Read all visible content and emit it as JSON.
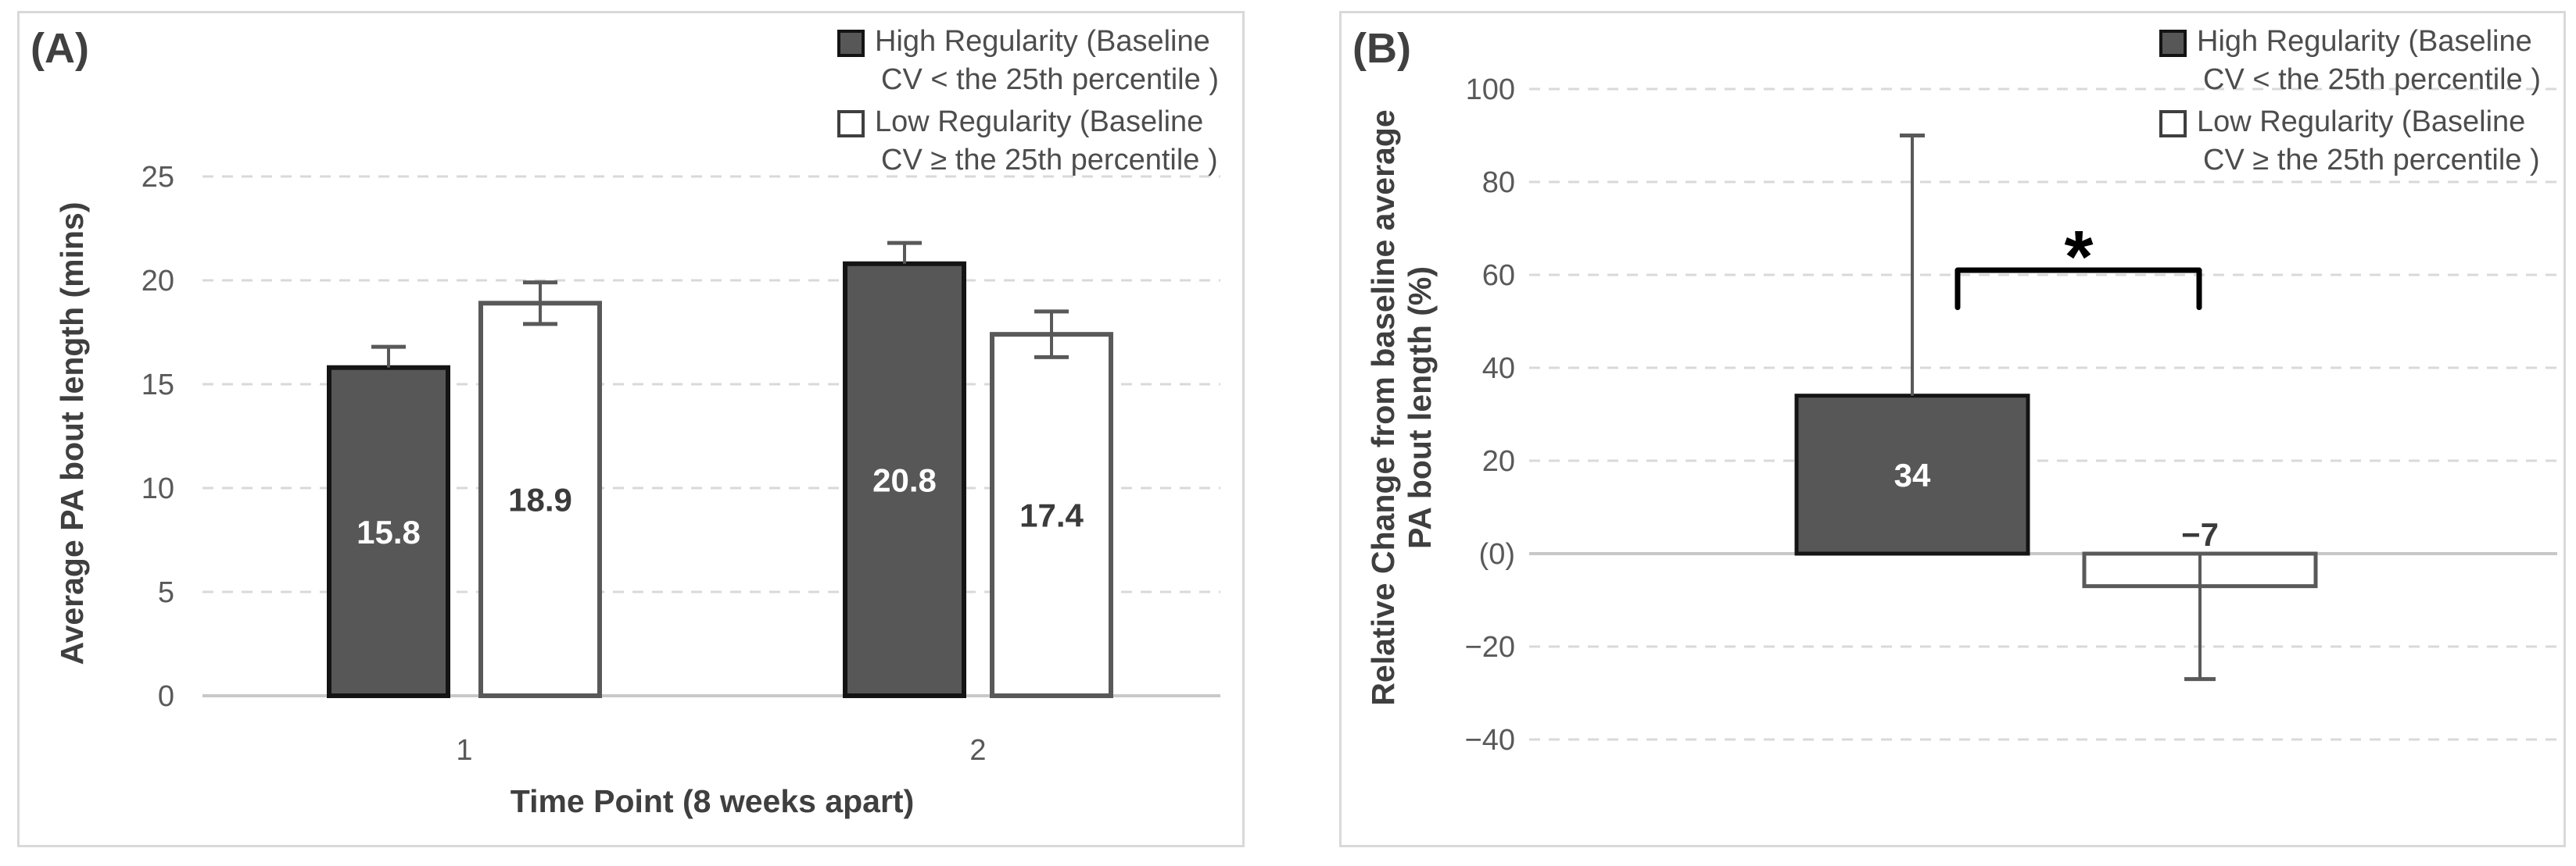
{
  "page": {
    "background": "#ffffff"
  },
  "colors": {
    "panel_border": "#d9d9d9",
    "grid": "#d9d9d9",
    "baseline": "#c8c8c8",
    "bar_dark_fill": "#575757",
    "bar_dark_stroke": "#141414",
    "bar_white_fill": "#ffffff",
    "bar_white_stroke": "#595959",
    "error_bar": "#595959",
    "tick_text": "#595959",
    "axis_title_text": "#3f3f3f",
    "panel_label_text": "#404040",
    "legend_text": "#4d4d4d",
    "data_label_on_dark": "#ffffff",
    "data_label_on_white": "#3b3b3b",
    "bracket": "#000000"
  },
  "chart_data": [
    {
      "type": "bar",
      "panel_label": "(A)",
      "categories": [
        "1",
        "2"
      ],
      "series": [
        {
          "name": "High Regularity (Baseline CV < the 25th percentile )",
          "swatch": "dark",
          "values": [
            15.8,
            20.8
          ],
          "labels": [
            "15.8",
            "20.8"
          ],
          "error_up": [
            1.0,
            1.0
          ],
          "error_down": [
            0,
            0
          ]
        },
        {
          "name": "Low Regularity (Baseline CV ≥ the 25th percentile )",
          "swatch": "white",
          "values": [
            18.9,
            17.4
          ],
          "labels": [
            "18.9",
            "17.4"
          ],
          "error_up": [
            1.0,
            1.1
          ],
          "error_down": [
            1.0,
            1.1
          ]
        }
      ],
      "xlabel": "Time Point (8 weeks apart)",
      "ylabel": "Average PA bout length (mins)",
      "ylim": [
        0,
        25
      ],
      "yticks": [
        {
          "v": 0,
          "label": "0"
        },
        {
          "v": 5,
          "label": "5"
        },
        {
          "v": 10,
          "label": "10"
        },
        {
          "v": 15,
          "label": "15"
        },
        {
          "v": 20,
          "label": "20"
        },
        {
          "v": 25,
          "label": "25"
        }
      ],
      "grid": "horizontal-dashed",
      "legend_position": "top-right",
      "legend": [
        {
          "swatch": "dark",
          "lines": [
            "High Regularity (Baseline",
            "CV < the 25th percentile )"
          ]
        },
        {
          "swatch": "white",
          "lines": [
            "Low Regularity (Baseline",
            "CV ≥ the 25th percentile )"
          ]
        }
      ]
    },
    {
      "type": "bar",
      "panel_label": "(B)",
      "series": [
        {
          "name": "High Regularity (Baseline CV < the 25th percentile )",
          "swatch": "dark",
          "values": [
            34
          ],
          "labels": [
            "34"
          ],
          "error_up": [
            56
          ],
          "error_down": [
            0
          ]
        },
        {
          "name": "Low Regularity (Baseline CV ≥ the 25th percentile )",
          "swatch": "white",
          "values": [
            -7
          ],
          "labels": [
            "−7"
          ],
          "error_up": [
            0
          ],
          "error_down": [
            20
          ]
        }
      ],
      "ylabel": "Relative Change from baseline average PA bout length (%)",
      "ylabel_lines": [
        "Relative Change from baseline average",
        "PA bout length (%)"
      ],
      "ylim": [
        -40,
        100
      ],
      "yticks": [
        {
          "v": 100,
          "label": "100"
        },
        {
          "v": 80,
          "label": "80"
        },
        {
          "v": 60,
          "label": "60"
        },
        {
          "v": 40,
          "label": "40"
        },
        {
          "v": 20,
          "label": "20"
        },
        {
          "v": 0,
          "label": "(0)"
        },
        {
          "v": -20,
          "label": "−20"
        },
        {
          "v": -40,
          "label": "−40"
        }
      ],
      "grid": "horizontal-dashed",
      "significance": {
        "symbol": "*"
      },
      "legend_position": "top-right",
      "legend": [
        {
          "swatch": "dark",
          "lines": [
            "High Regularity (Baseline",
            "CV < the 25th percentile )"
          ]
        },
        {
          "swatch": "white",
          "lines": [
            "Low Regularity (Baseline",
            "CV ≥ the 25th percentile )"
          ]
        }
      ]
    }
  ]
}
